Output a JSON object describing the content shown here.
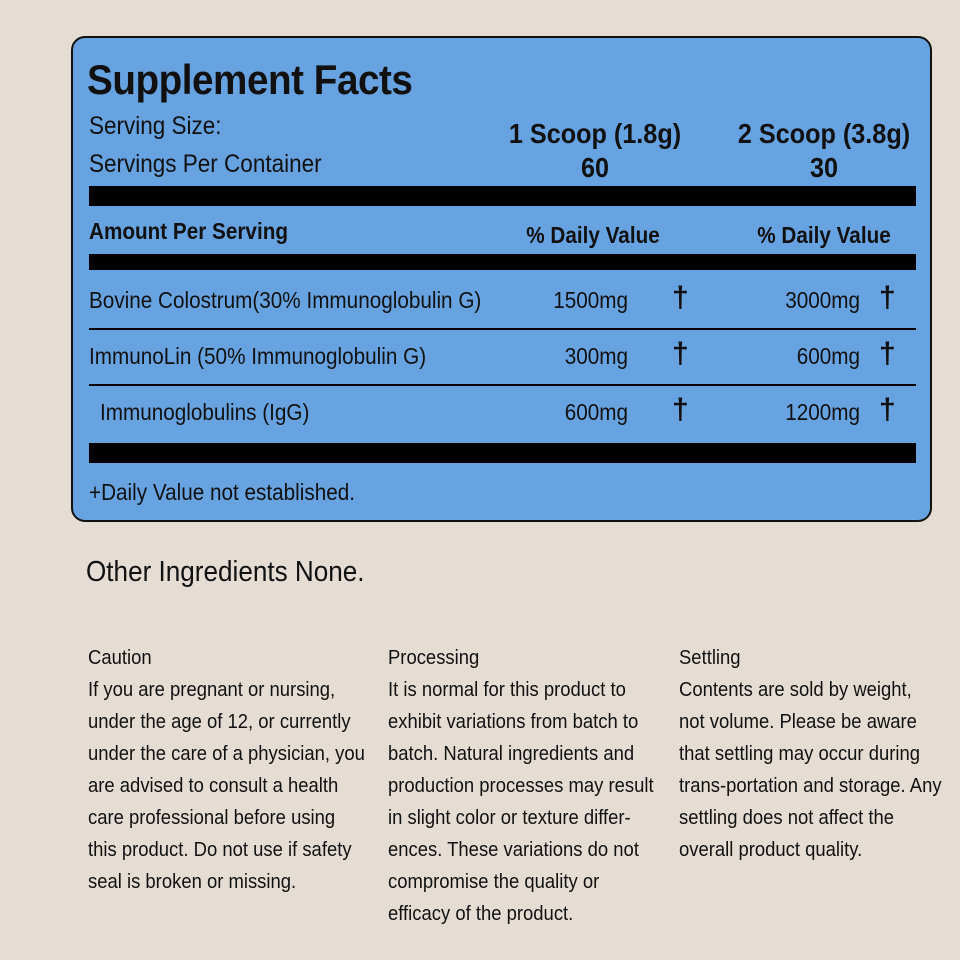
{
  "facts": {
    "title": "Supplement Facts",
    "serving_size_label": "Serving Size:",
    "servings_per_container_label": "Servings Per Container",
    "col1_size": "1 Scoop (1.8g)",
    "col1_servings": "60",
    "col2_size": "2 Scoop (3.8g)",
    "col2_servings": "30",
    "amount_header": "Amount Per Serving",
    "dv_header_1": "% Daily Value",
    "dv_header_2": "% Daily Value",
    "rows": [
      {
        "name": "Bovine Colostrum(30% Immunoglobulin G)",
        "amount1": "1500mg",
        "mark1": "†",
        "amount2": "3000mg",
        "mark2": "†"
      },
      {
        "name": "ImmunoLin (50% Immunoglobulin G)",
        "amount1": "300mg",
        "mark1": "†",
        "amount2": "600mg",
        "mark2": "†"
      },
      {
        "name": "Immunoglobulins (IgG)",
        "amount1": "600mg",
        "mark1": "†",
        "amount2": "1200mg",
        "mark2": "†"
      }
    ],
    "footnote": "+Daily Value not established."
  },
  "other_ingredients": "Other Ingredients None.",
  "notes": {
    "caution": {
      "title": "Caution",
      "lines": [
        "If you are pregnant or nursing,",
        "under the age of 12, or currently",
        "under the care of a physician, you",
        "are advised to consult a health",
        "care professional before using",
        "this product.  Do not use if safety",
        "seal is broken or missing."
      ]
    },
    "processing": {
      "title": "Processing",
      "lines": [
        "It is normal for this product to",
        "exhibit variations from batch to",
        "batch.  Natural ingredients and",
        "production processes may result",
        "in slight color or texture differ-",
        "ences.  These variations do not",
        "compromise the quality or",
        "efficacy of the product."
      ]
    },
    "settling": {
      "title": "Settling",
      "lines": [
        "Contents are sold by weight,",
        "not volume. Please be aware",
        "that settling may occur during",
        "trans-portation and storage. Any",
        "settling does not affect the",
        "overall product quality."
      ]
    }
  },
  "colors": {
    "panel": "#67a3e1",
    "background": "#e5ddd3",
    "ink": "#000000"
  }
}
